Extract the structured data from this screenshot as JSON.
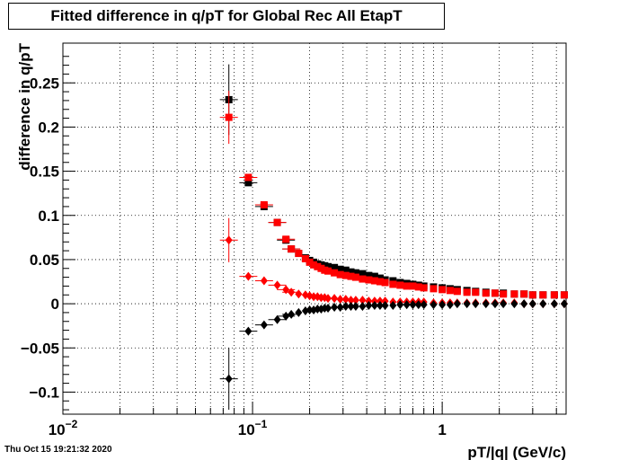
{
  "header": {
    "title": "Fitted difference in q/pT  for Global Rec All EtapT"
  },
  "footer": {
    "timestamp": "Thu Oct 15 19:21:32 2020"
  },
  "chart_data": {
    "type": "scatter",
    "title": "Fitted difference in q/pT  for Global Rec All EtapT",
    "xlabel": "pT/|q| (GeV/c)",
    "ylabel": "difference in q/pT",
    "xscale": "log",
    "xlim": [
      0.01,
      4.5
    ],
    "ylim": [
      -0.125,
      0.295
    ],
    "grid": true,
    "x_tick_labels": [
      {
        "value": 0.01,
        "base": "10",
        "exp": "−2"
      },
      {
        "value": 0.1,
        "base": "10",
        "exp": "−1"
      },
      {
        "value": 1,
        "base": "1",
        "exp": ""
      }
    ],
    "y_ticks": [
      -0.1,
      -0.05,
      0,
      0.05,
      0.1,
      0.15,
      0.2,
      0.25
    ],
    "y_tick_labels": [
      "−0.1",
      "−0.05",
      "0",
      "0.05",
      "0.1",
      "0.15",
      "0.2",
      "0.25"
    ],
    "series": [
      {
        "marker": "square",
        "color": "#000000",
        "x": [
          0.075,
          0.095,
          0.115,
          0.135,
          0.15,
          0.16,
          0.175,
          0.19,
          0.2,
          0.21,
          0.22,
          0.23,
          0.24,
          0.25,
          0.27,
          0.29,
          0.31,
          0.33,
          0.35,
          0.38,
          0.41,
          0.44,
          0.47,
          0.5,
          0.55,
          0.6,
          0.65,
          0.7,
          0.75,
          0.8,
          0.9,
          1.0,
          1.1,
          1.2,
          1.35,
          1.5,
          1.7,
          1.9,
          2.1,
          2.4,
          2.7,
          3.0,
          3.4,
          3.9,
          4.4
        ],
        "y": [
          0.231,
          0.137,
          0.11,
          0.092,
          0.072,
          0.062,
          0.057,
          0.052,
          0.049,
          0.047,
          0.045,
          0.044,
          0.043,
          0.042,
          0.041,
          0.039,
          0.038,
          0.036,
          0.035,
          0.034,
          0.032,
          0.031,
          0.029,
          0.027,
          0.026,
          0.024,
          0.023,
          0.022,
          0.021,
          0.02,
          0.019,
          0.018,
          0.017,
          0.016,
          0.015,
          0.014,
          0.013,
          0.012,
          0.012,
          0.011,
          0.011,
          0.01,
          0.01,
          0.01,
          0.01
        ],
        "yerr": [
          0.04,
          0,
          0,
          0,
          0,
          0,
          0,
          0,
          0,
          0,
          0,
          0,
          0,
          0,
          0,
          0,
          0,
          0,
          0,
          0,
          0,
          0,
          0,
          0,
          0,
          0,
          0,
          0,
          0,
          0,
          0,
          0,
          0,
          0,
          0,
          0,
          0,
          0,
          0,
          0,
          0,
          0,
          0,
          0,
          0
        ]
      },
      {
        "marker": "square",
        "color": "#ff0000",
        "x": [
          0.075,
          0.095,
          0.115,
          0.135,
          0.15,
          0.16,
          0.175,
          0.19,
          0.2,
          0.21,
          0.22,
          0.23,
          0.24,
          0.25,
          0.27,
          0.29,
          0.31,
          0.33,
          0.35,
          0.38,
          0.41,
          0.44,
          0.47,
          0.5,
          0.55,
          0.6,
          0.65,
          0.7,
          0.75,
          0.8,
          0.9,
          1.0,
          1.1,
          1.2,
          1.35,
          1.5,
          1.7,
          1.9,
          2.1,
          2.4,
          2.7,
          3.0,
          3.4,
          3.9,
          4.4
        ],
        "y": [
          0.211,
          0.143,
          0.112,
          0.092,
          0.073,
          0.062,
          0.057,
          0.051,
          0.047,
          0.044,
          0.042,
          0.04,
          0.038,
          0.037,
          0.035,
          0.033,
          0.032,
          0.031,
          0.03,
          0.028,
          0.027,
          0.026,
          0.025,
          0.024,
          0.022,
          0.021,
          0.02,
          0.02,
          0.019,
          0.018,
          0.017,
          0.016,
          0.015,
          0.014,
          0.013,
          0.013,
          0.012,
          0.012,
          0.011,
          0.011,
          0.011,
          0.01,
          0.01,
          0.01,
          0.01
        ],
        "yerr": [
          0.03,
          0,
          0,
          0,
          0,
          0,
          0,
          0,
          0,
          0,
          0,
          0,
          0,
          0,
          0,
          0,
          0,
          0,
          0,
          0,
          0,
          0,
          0,
          0,
          0,
          0,
          0,
          0,
          0,
          0,
          0,
          0,
          0,
          0,
          0,
          0,
          0,
          0,
          0,
          0,
          0,
          0,
          0,
          0,
          0
        ]
      },
      {
        "marker": "diamond",
        "color": "#ff0000",
        "x": [
          0.075,
          0.095,
          0.115,
          0.135,
          0.15,
          0.16,
          0.175,
          0.19,
          0.2,
          0.21,
          0.22,
          0.23,
          0.24,
          0.25,
          0.27,
          0.29,
          0.31,
          0.33,
          0.35,
          0.38,
          0.41,
          0.44,
          0.47,
          0.5,
          0.55,
          0.6,
          0.65,
          0.7,
          0.75,
          0.8,
          0.9,
          1.0,
          1.1,
          1.2,
          1.35,
          1.5,
          1.7,
          1.9,
          2.1,
          2.4,
          2.7,
          3.0,
          3.4,
          3.9,
          4.4
        ],
        "y": [
          0.072,
          0.031,
          0.026,
          0.021,
          0.016,
          0.013,
          0.011,
          0.01,
          0.009,
          0.008,
          0.008,
          0.007,
          0.007,
          0.006,
          0.006,
          0.005,
          0.005,
          0.004,
          0.004,
          0.004,
          0.003,
          0.003,
          0.003,
          0.003,
          0.002,
          0.002,
          0.002,
          0.002,
          0.002,
          0.002,
          0.001,
          0.001,
          0.001,
          0.001,
          0.001,
          0.001,
          0.001,
          0.001,
          0.001,
          0.001,
          0.0,
          0.0,
          0.0,
          0.0,
          0.0
        ],
        "yerr": [
          0.025,
          0,
          0,
          0,
          0,
          0,
          0,
          0,
          0,
          0,
          0,
          0,
          0,
          0,
          0,
          0,
          0,
          0,
          0,
          0,
          0,
          0,
          0,
          0,
          0,
          0,
          0,
          0,
          0,
          0,
          0,
          0,
          0,
          0,
          0,
          0,
          0,
          0,
          0,
          0,
          0,
          0,
          0,
          0,
          0
        ]
      },
      {
        "marker": "diamond",
        "color": "#000000",
        "x": [
          0.075,
          0.095,
          0.115,
          0.135,
          0.15,
          0.16,
          0.175,
          0.19,
          0.2,
          0.21,
          0.22,
          0.23,
          0.24,
          0.25,
          0.27,
          0.29,
          0.31,
          0.33,
          0.35,
          0.38,
          0.41,
          0.44,
          0.47,
          0.5,
          0.55,
          0.6,
          0.65,
          0.7,
          0.75,
          0.8,
          0.9,
          1.0,
          1.1,
          1.2,
          1.35,
          1.5,
          1.7,
          1.9,
          2.1,
          2.4,
          2.7,
          3.0,
          3.4,
          3.9,
          4.4
        ],
        "y": [
          -0.085,
          -0.031,
          -0.024,
          -0.018,
          -0.014,
          -0.012,
          -0.01,
          -0.008,
          -0.007,
          -0.007,
          -0.006,
          -0.006,
          -0.005,
          -0.005,
          -0.004,
          -0.004,
          -0.003,
          -0.003,
          -0.003,
          -0.003,
          -0.002,
          -0.002,
          -0.002,
          -0.002,
          -0.002,
          -0.001,
          -0.001,
          -0.001,
          -0.001,
          -0.001,
          -0.001,
          -0.001,
          -0.001,
          0.0,
          0.0,
          0.0,
          0.0,
          0.0,
          0.0,
          0.0,
          0.0,
          0.0,
          0.0,
          0.0,
          0.0
        ],
        "yerr": [
          0.035,
          0,
          0,
          0,
          0,
          0,
          0,
          0,
          0,
          0,
          0,
          0,
          0,
          0,
          0,
          0,
          0,
          0,
          0,
          0,
          0,
          0,
          0,
          0,
          0,
          0,
          0,
          0,
          0,
          0,
          0,
          0,
          0,
          0,
          0,
          0,
          0,
          0,
          0,
          0,
          0,
          0,
          0,
          0,
          0
        ]
      }
    ]
  }
}
